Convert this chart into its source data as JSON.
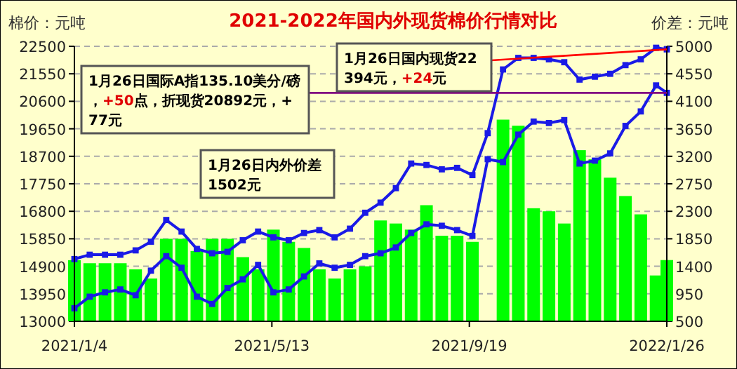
{
  "chart_data": {
    "type": "line",
    "title": "2021-2022年国内外现货棉价行情对比",
    "ylabel": "棉价：元吨",
    "y2label": "价差：元吨",
    "x": [
      "2021-01-04",
      "2021-01-14",
      "2021-01-24",
      "2021-02-03",
      "2021-02-13",
      "2021-02-23",
      "2021-03-05",
      "2021-03-15",
      "2021-03-25",
      "2021-04-04",
      "2021-04-14",
      "2021-04-24",
      "2021-05-04",
      "2021-05-14",
      "2021-05-24",
      "2021-06-03",
      "2021-06-13",
      "2021-06-23",
      "2021-07-03",
      "2021-07-13",
      "2021-07-23",
      "2021-08-02",
      "2021-08-12",
      "2021-08-22",
      "2021-09-01",
      "2021-09-11",
      "2021-09-21",
      "2021-10-01",
      "2021-10-11",
      "2021-10-21",
      "2021-10-31",
      "2021-11-10",
      "2021-11-20",
      "2021-11-30",
      "2021-12-10",
      "2021-12-20",
      "2021-12-30",
      "2022-01-09",
      "2022-01-19",
      "2022-01-26"
    ],
    "series": [
      {
        "type": "bar",
        "axis": "y2",
        "color": "#00ff00",
        "values": [
          1500,
          1450,
          1450,
          1450,
          1350,
          1200,
          1850,
          1850,
          1650,
          1850,
          1850,
          1550,
          1350,
          2000,
          1800,
          1700,
          1350,
          1200,
          1350,
          1400,
          2150,
          2100,
          2000,
          2400,
          1900,
          1900,
          1800,
          null,
          3800,
          3700,
          2350,
          2300,
          2100,
          3300,
          3150,
          2850,
          2550,
          2250,
          1250,
          1502
        ]
      },
      {
        "color": "#1a1ae6",
        "values": [
          15150,
          15300,
          15300,
          15300,
          15450,
          15750,
          16500,
          16100,
          15500,
          15350,
          15400,
          15800,
          16100,
          15900,
          15800,
          16050,
          16150,
          15900,
          16200,
          16750,
          17100,
          17600,
          18450,
          18400,
          18250,
          18300,
          18050,
          19500,
          21700,
          22100,
          22100,
          22050,
          21950,
          21350,
          21450,
          21550,
          21850,
          22050,
          22450,
          22394
        ]
      },
      {
        "color": "#1a1ae6",
        "values": [
          13450,
          13850,
          14000,
          14100,
          13900,
          14750,
          15250,
          14850,
          13850,
          13600,
          14150,
          14450,
          14950,
          14000,
          14100,
          14550,
          15000,
          14850,
          14950,
          15250,
          15350,
          15550,
          16050,
          16350,
          16300,
          16150,
          15950,
          18600,
          18500,
          19450,
          19900,
          19850,
          19950,
          18450,
          18550,
          18800,
          19750,
          20250,
          21150,
          20892
        ]
      }
    ],
    "xlim": [
      "2021-01-04",
      "2022-01-26"
    ],
    "xticks": [
      {
        "value": "2021-01-04",
        "label": "2021/1/4"
      },
      {
        "value": "2021-05-13",
        "label": "2021/5/13"
      },
      {
        "value": "2021-09-19",
        "label": "2021/9/19"
      },
      {
        "value": "2022-01-26",
        "label": "2022/1/26"
      }
    ],
    "ylim": [
      13000,
      22500
    ],
    "yticks": [
      13000,
      13950,
      14900,
      15850,
      16800,
      17750,
      18700,
      19650,
      20600,
      21550,
      22500
    ],
    "y2lim": [
      500,
      5000
    ],
    "y2ticks": [
      500,
      950,
      1400,
      1850,
      2300,
      2750,
      3200,
      3650,
      4100,
      4550,
      5000
    ],
    "grid": "y",
    "marker": "square",
    "annotations": [
      {
        "text": "1月26日国际A指135.10美分/磅，+50点，折现货20892元，+77元",
        "x": "2022-01-26",
        "y": 20892
      },
      {
        "text": "1月26日国内现货22394元，+24元",
        "x": "2022-01-26",
        "y": 22394
      },
      "1月26日内外价差1502元"
    ]
  }
}
